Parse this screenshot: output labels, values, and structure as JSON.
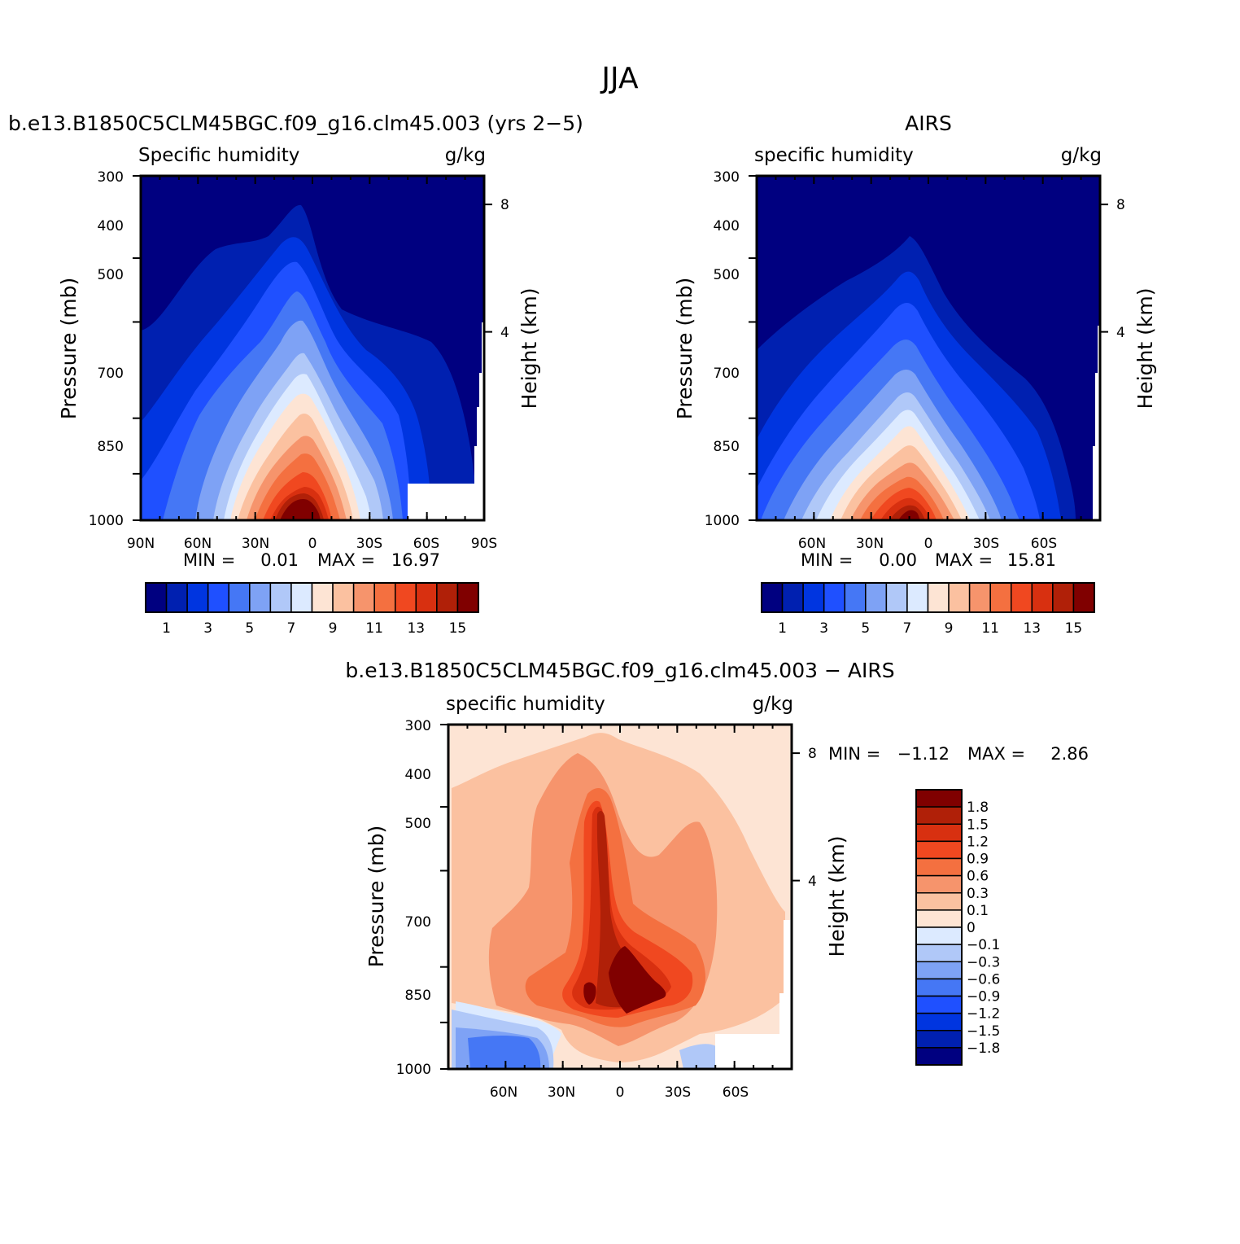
{
  "main_title": "JJA",
  "colors": {
    "abs_levels": [
      "#000080",
      "#0020b0",
      "#0035e0",
      "#1f50ff",
      "#4577f5",
      "#7ea2f5",
      "#b0c8f8",
      "#dceaff",
      "#fde4d4",
      "#fbc1a0",
      "#f6946c",
      "#f47040",
      "#f04820",
      "#d83010",
      "#b02008",
      "#800000"
    ],
    "diff_levels": [
      "#000080",
      "#0020b0",
      "#0035e0",
      "#1f50ff",
      "#4577f5",
      "#7ea2f5",
      "#b0c8f8",
      "#dceaff",
      "#fde4d4",
      "#fbc1a0",
      "#f6946c",
      "#f47040",
      "#f04820",
      "#d83010",
      "#b02008",
      "#800000"
    ]
  },
  "panels": [
    {
      "id": "model",
      "title": "b.e13.B1850C5CLM45BGC.f09_g16.clm45.003 (yrs 2−5)",
      "left_label": "Specific humidity",
      "right_label": "g/kg",
      "ylabel": "Pressure (mb)",
      "y2label": "Height (km)",
      "yticks": [
        "300",
        "400",
        "500",
        "700",
        "850",
        "1000"
      ],
      "y2ticks": [
        "8",
        "4"
      ],
      "xticks": [
        "90N",
        "60N",
        "30N",
        "0",
        "30S",
        "60S",
        "90S"
      ],
      "stats": {
        "min_label": "MIN =",
        "min": "0.01",
        "max_label": "MAX =",
        "max": "16.97"
      },
      "colorbar_labels": [
        "1",
        "3",
        "5",
        "7",
        "9",
        "11",
        "13",
        "15"
      ]
    },
    {
      "id": "obs",
      "title": "AIRS",
      "left_label": "specific humidity",
      "right_label": "g/kg",
      "ylabel": "Pressure (mb)",
      "y2label": "Height (km)",
      "yticks": [
        "300",
        "400",
        "500",
        "700",
        "850",
        "1000"
      ],
      "y2ticks": [
        "8",
        "4"
      ],
      "xticks": [
        "60N",
        "30N",
        "0",
        "30S",
        "60S"
      ],
      "stats": {
        "min_label": "MIN =",
        "min": "0.00",
        "max_label": "MAX =",
        "max": "15.81"
      },
      "colorbar_labels": [
        "1",
        "3",
        "5",
        "7",
        "9",
        "11",
        "13",
        "15"
      ]
    },
    {
      "id": "diff",
      "title": "b.e13.B1850C5CLM45BGC.f09_g16.clm45.003 − AIRS",
      "left_label": "specific humidity",
      "right_label": "g/kg",
      "ylabel": "Pressure (mb)",
      "y2label": "Height (km)",
      "yticks": [
        "300",
        "400",
        "500",
        "700",
        "850",
        "1000"
      ],
      "y2ticks": [
        "8",
        "4"
      ],
      "xticks": [
        "60N",
        "30N",
        "0",
        "30S",
        "60S"
      ],
      "stats": {
        "min_label": "MIN =",
        "min": "−1.12",
        "max_label": "MAX =",
        "max": "2.86"
      },
      "colorbar_labels": [
        "1.8",
        "1.5",
        "1.2",
        "0.9",
        "0.6",
        "0.3",
        "0.1",
        "0",
        "−0.1",
        "−0.3",
        "−0.6",
        "−0.9",
        "−1.2",
        "−1.5",
        "−1.8"
      ]
    }
  ],
  "chart_data": [
    {
      "type": "heatmap",
      "title": "b.e13.B1850C5CLM45BGC.f09_g16.clm45.003 (yrs 2−5)",
      "variable": "Specific humidity",
      "units": "g/kg",
      "xlabel": "",
      "ylabel": "Pressure (mb)",
      "y2label": "Height (km)",
      "x_range": [
        "90N",
        "90S"
      ],
      "ylim": [
        1000,
        300
      ],
      "y_scale": "log",
      "contour_levels": [
        1,
        2,
        3,
        4,
        5,
        6,
        7,
        8,
        9,
        10,
        11,
        12,
        13,
        14,
        15
      ],
      "approx_profile": {
        "lat_of_max": "~8N",
        "surface_max_g_kg": 16.97
      },
      "min": 0.01,
      "max": 16.97
    },
    {
      "type": "heatmap",
      "title": "AIRS",
      "variable": "specific humidity",
      "units": "g/kg",
      "xlabel": "",
      "ylabel": "Pressure (mb)",
      "y2label": "Height (km)",
      "ylim": [
        1000,
        300
      ],
      "y_scale": "log",
      "contour_levels": [
        1,
        2,
        3,
        4,
        5,
        6,
        7,
        8,
        9,
        10,
        11,
        12,
        13,
        14,
        15
      ],
      "min": 0.0,
      "max": 15.81
    },
    {
      "type": "heatmap",
      "title": "b.e13.B1850C5CLM45BGC.f09_g16.clm45.003 − AIRS",
      "variable": "specific humidity",
      "units": "g/kg",
      "xlabel": "",
      "ylabel": "Pressure (mb)",
      "y2label": "Height (km)",
      "ylim": [
        1000,
        300
      ],
      "y_scale": "log",
      "contour_levels": [
        -1.8,
        -1.5,
        -1.2,
        -0.9,
        -0.6,
        -0.3,
        -0.1,
        0,
        0.1,
        0.3,
        0.6,
        0.9,
        1.2,
        1.5,
        1.8
      ],
      "min": -1.12,
      "max": 2.86
    }
  ]
}
